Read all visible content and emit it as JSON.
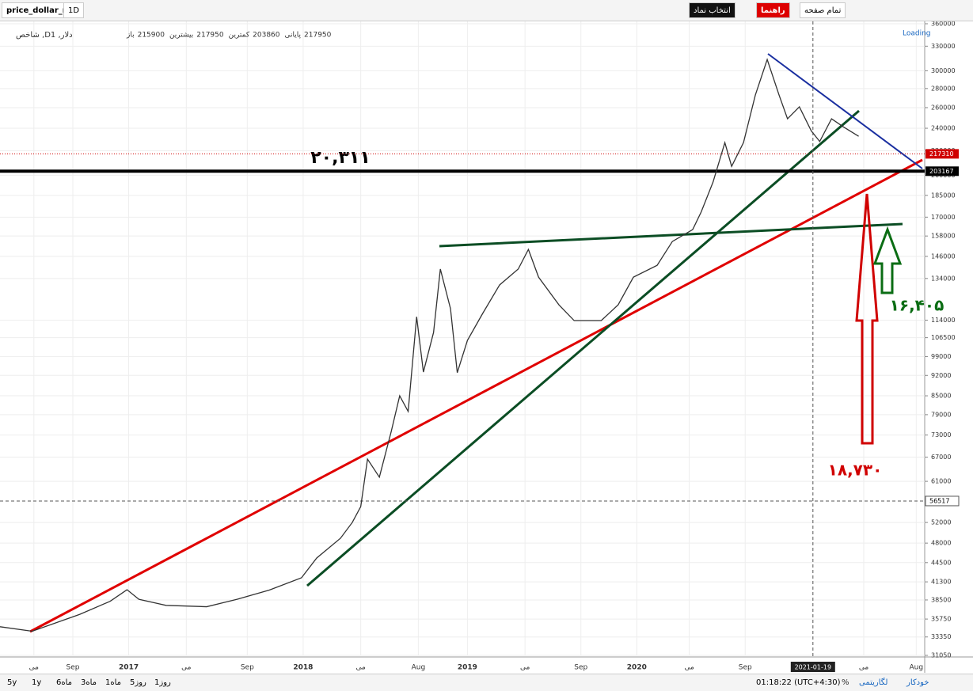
{
  "toolbar": {
    "symbol": "price_dollar_rl",
    "interval": "1D",
    "buttons": [
      "انتخاب نماد",
      "راهنما",
      "تمام صفحه"
    ]
  },
  "legend": {
    "title": "شاخص ,Dدلار, 1",
    "ohlc": [
      {
        "label": "باز",
        "value": 215900
      },
      {
        "label": "بیشترین",
        "value": 217950
      },
      {
        "label": "کمترین",
        "value": 203860
      },
      {
        "label": "پایانی",
        "value": 217950
      }
    ],
    "status": "Loading"
  },
  "chart_data": {
    "type": "line",
    "log_scale": true,
    "color": "#333333",
    "x": [
      2016.24,
      2016.43,
      2016.71,
      2016.89,
      2016.99,
      2017.06,
      2017.22,
      2017.46,
      2017.64,
      2017.83,
      2018.02,
      2018.11,
      2018.25,
      2018.32,
      2018.37,
      2018.41,
      2018.48,
      2018.55,
      2018.6,
      2018.65,
      2018.7,
      2018.74,
      2018.8,
      2018.84,
      2018.9,
      2018.94,
      2019.0,
      2019.09,
      2019.19,
      2019.3,
      2019.36,
      2019.42,
      2019.54,
      2019.63,
      2019.79,
      2019.89,
      2019.98,
      2020.12,
      2020.21,
      2020.33,
      2020.38,
      2020.45,
      2020.52,
      2020.56,
      2020.63,
      2020.7,
      2020.77,
      2020.84,
      2020.89,
      2020.96,
      2021.03,
      2021.08,
      2021.15,
      2021.22,
      2021.31
    ],
    "values": [
      34700,
      34100,
      36400,
      38300,
      40060,
      38600,
      37700,
      37500,
      38600,
      40000,
      41950,
      45300,
      48900,
      52000,
      55300,
      66500,
      62000,
      74000,
      85000,
      80000,
      115500,
      93200,
      108700,
      139000,
      119200,
      93000,
      105400,
      117000,
      130700,
      139000,
      150000,
      134700,
      121000,
      113800,
      113800,
      121000,
      134700,
      141000,
      154700,
      162000,
      173400,
      194700,
      227000,
      207000,
      227000,
      273000,
      313400,
      273000,
      249000,
      260800,
      237600,
      228000,
      249000,
      241300,
      232600
    ],
    "xlim": [
      2016.24,
      2021.7
    ],
    "xticks": [
      {
        "value": 2016.44,
        "label": "می"
      },
      {
        "value": 2016.67,
        "label": "Sep"
      },
      {
        "value": 2017.0,
        "label": "2017"
      },
      {
        "value": 2017.34,
        "label": "می"
      },
      {
        "value": 2017.7,
        "label": "Sep"
      },
      {
        "value": 2018.03,
        "label": "2018"
      },
      {
        "value": 2018.37,
        "label": "می"
      },
      {
        "value": 2018.71,
        "label": "Aug"
      },
      {
        "value": 2019.0,
        "label": "2019"
      },
      {
        "value": 2019.34,
        "label": "می"
      },
      {
        "value": 2019.67,
        "label": "Sep"
      },
      {
        "value": 2020.0,
        "label": "2020"
      },
      {
        "value": 2020.31,
        "label": "می"
      },
      {
        "value": 2020.64,
        "label": "Sep"
      },
      {
        "value": 2021.34,
        "label": "می"
      },
      {
        "value": 2021.65,
        "label": "Aug"
      }
    ],
    "ylim": [
      31050,
      360000
    ],
    "yticks": [
      31050,
      33350,
      35750,
      38500,
      41300,
      44500,
      48000,
      52000,
      61000,
      67000,
      73000,
      79000,
      85000,
      92000,
      99000,
      106500,
      114000,
      134000,
      146000,
      158000,
      170000,
      185000,
      200000,
      220000,
      240000,
      260000,
      280000,
      300000,
      330000,
      360000
    ],
    "price_lines": [
      {
        "value": 217310,
        "color": "#d00000",
        "style": "dotted"
      },
      {
        "value": 203167,
        "color": "#000000",
        "style": "solid"
      },
      {
        "value": 56517,
        "color": "#555555",
        "style": "dashed"
      }
    ],
    "crosshair_x": {
      "value": 2021.04,
      "label": "2021-01-19"
    },
    "annotations": [
      "۲۰,۳۱۱",
      "۱۸,۷۳۰",
      "۱۶,۴۰۵"
    ]
  },
  "bottom_bar": {
    "ranges": [
      "5y",
      "1y",
      "6ماه",
      "3ماه",
      "1ماه",
      "5روز",
      "1روز"
    ],
    "clock": "01:18:22 (UTC+4:30)",
    "options": [
      "%",
      "لگاریتمی",
      "خودکار"
    ]
  }
}
